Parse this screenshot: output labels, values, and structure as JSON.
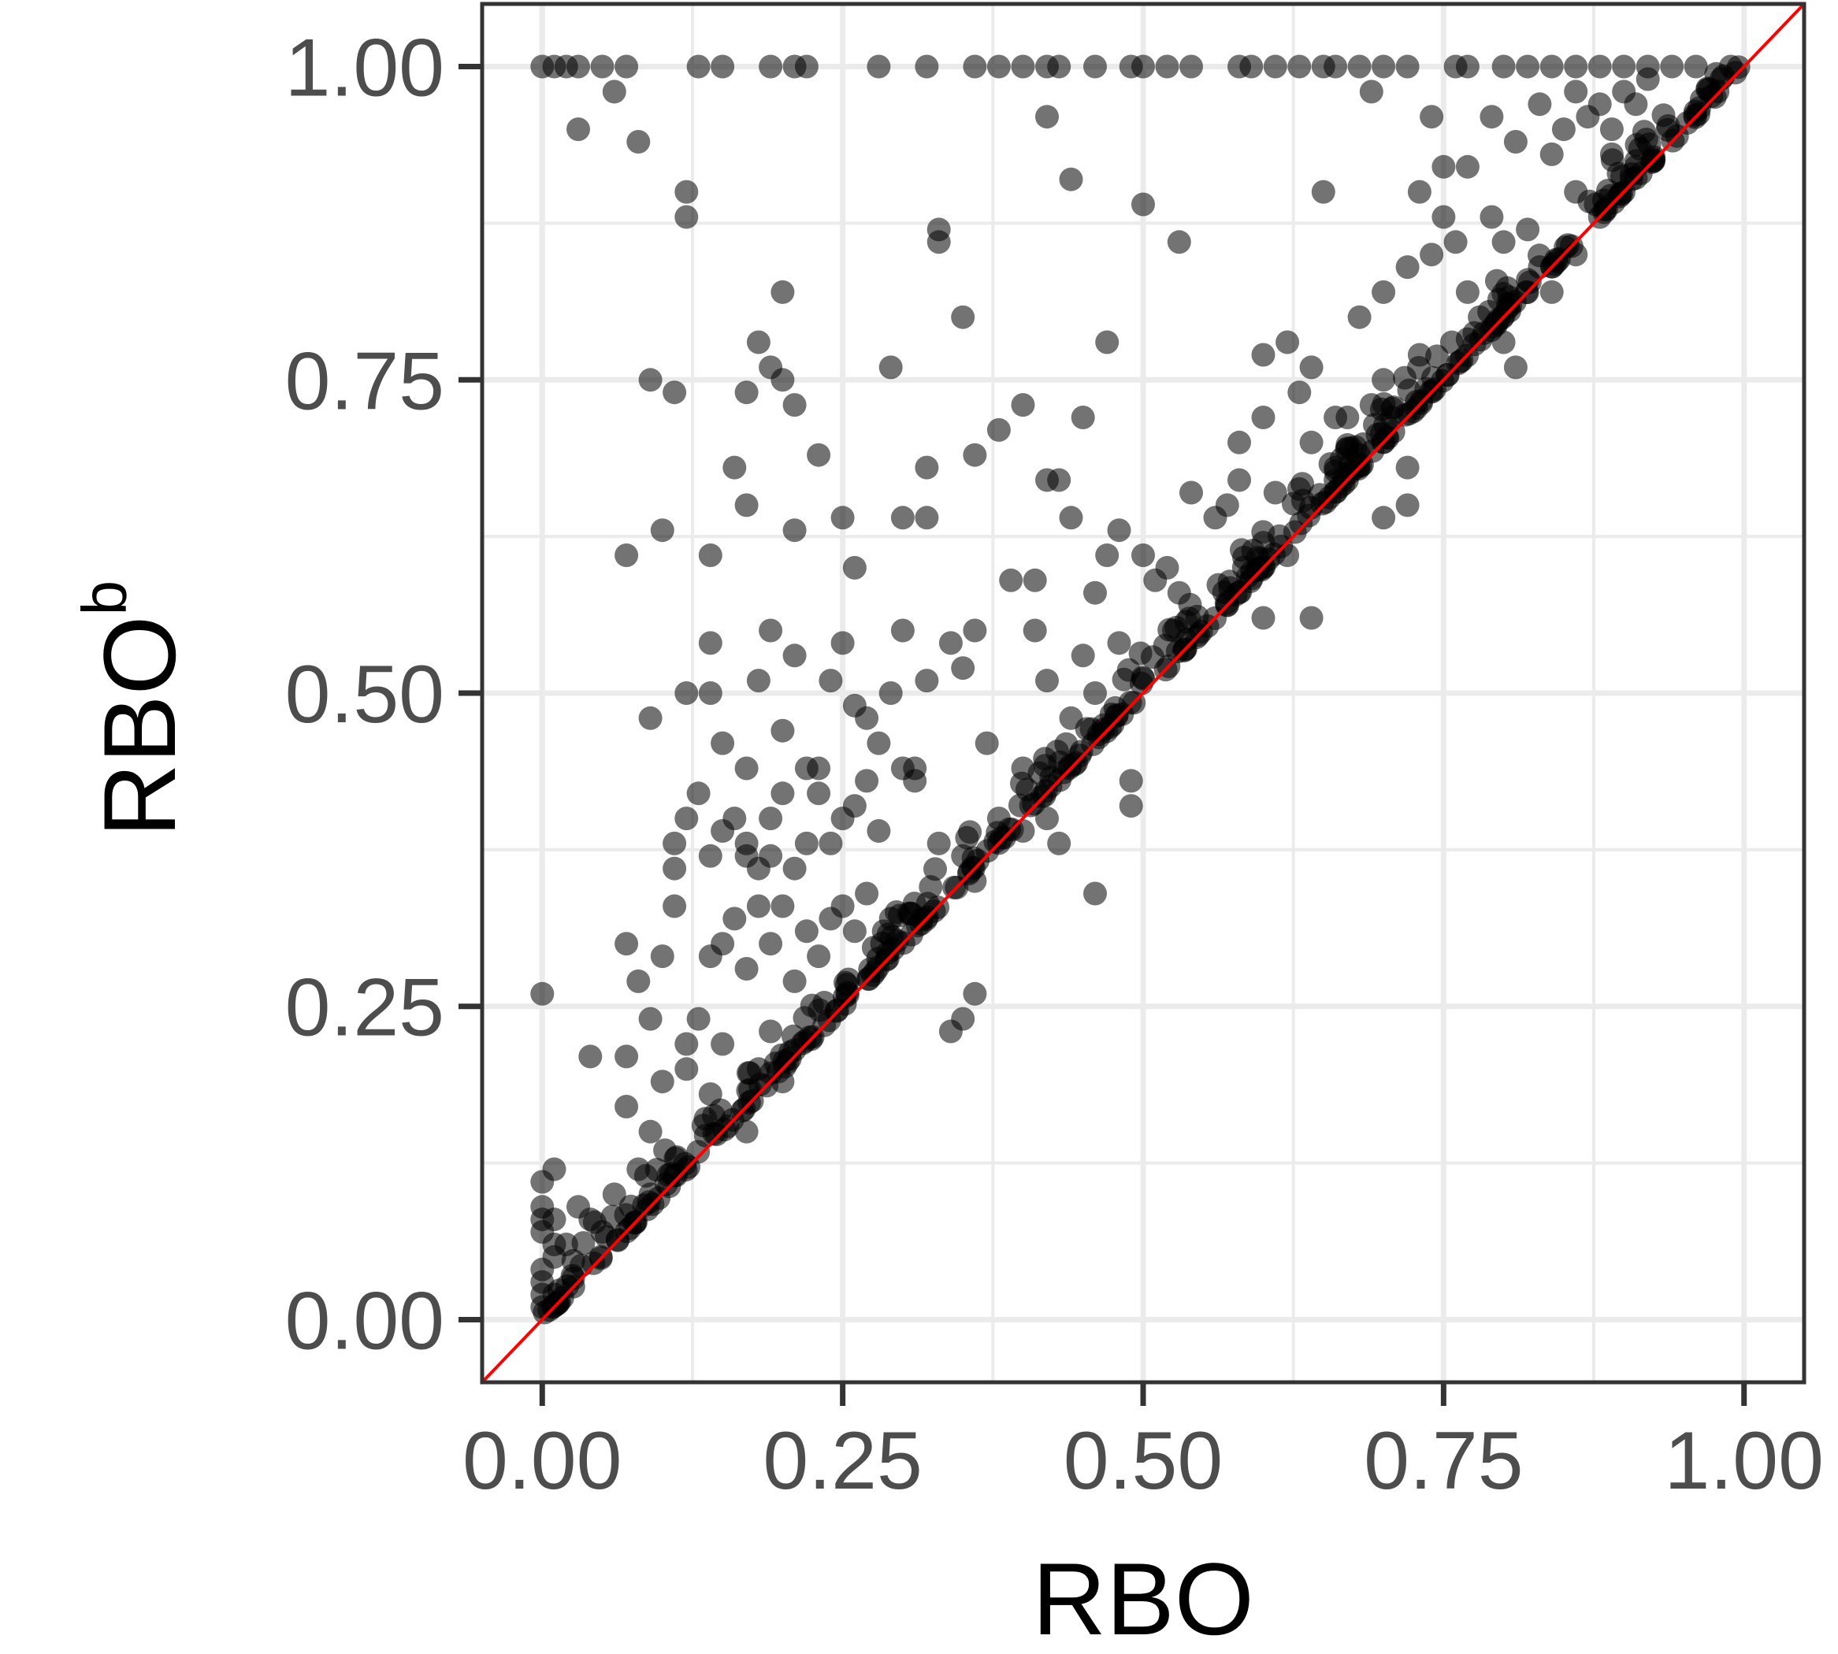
{
  "chart_data": {
    "type": "scatter",
    "title": "",
    "xlabel": "RBO",
    "ylabel": {
      "base": "RBO",
      "superscript": "b"
    },
    "xlim": [
      -0.05,
      1.05
    ],
    "ylim": [
      -0.05,
      1.05
    ],
    "x_ticks": [
      0.0,
      0.25,
      0.5,
      0.75,
      1.0
    ],
    "y_ticks": [
      0.0,
      0.25,
      0.5,
      0.75,
      1.0
    ],
    "x_tick_labels": [
      "0.00",
      "0.25",
      "0.50",
      "0.75",
      "1.00"
    ],
    "y_tick_labels": [
      "0.00",
      "0.25",
      "0.50",
      "0.75",
      "1.00"
    ],
    "grid": true,
    "legend": "none",
    "reference_line": {
      "type": "identity",
      "slope": 1,
      "intercept": 0,
      "color": "#ff0000"
    },
    "point_color": "#000000",
    "point_opacity": 0.55,
    "series": [
      {
        "points": [
          [
            0.0,
            1.0
          ],
          [
            0.01,
            1.0
          ],
          [
            0.02,
            1.0
          ],
          [
            0.03,
            1.0
          ],
          [
            0.05,
            1.0
          ],
          [
            0.07,
            1.0
          ],
          [
            0.13,
            1.0
          ],
          [
            0.15,
            1.0
          ],
          [
            0.19,
            1.0
          ],
          [
            0.21,
            1.0
          ],
          [
            0.22,
            1.0
          ],
          [
            0.28,
            1.0
          ],
          [
            0.32,
            1.0
          ],
          [
            0.36,
            1.0
          ],
          [
            0.38,
            1.0
          ],
          [
            0.4,
            1.0
          ],
          [
            0.42,
            1.0
          ],
          [
            0.43,
            1.0
          ],
          [
            0.46,
            1.0
          ],
          [
            0.49,
            1.0
          ],
          [
            0.5,
            1.0
          ],
          [
            0.52,
            1.0
          ],
          [
            0.54,
            1.0
          ],
          [
            0.58,
            1.0
          ],
          [
            0.59,
            1.0
          ],
          [
            0.61,
            1.0
          ],
          [
            0.63,
            1.0
          ],
          [
            0.65,
            1.0
          ],
          [
            0.66,
            1.0
          ],
          [
            0.68,
            1.0
          ],
          [
            0.7,
            1.0
          ],
          [
            0.72,
            1.0
          ],
          [
            0.76,
            1.0
          ],
          [
            0.77,
            1.0
          ],
          [
            0.8,
            1.0
          ],
          [
            0.82,
            1.0
          ],
          [
            0.84,
            1.0
          ],
          [
            0.86,
            1.0
          ],
          [
            0.88,
            1.0
          ],
          [
            0.9,
            1.0
          ],
          [
            0.92,
            1.0
          ],
          [
            0.94,
            1.0
          ],
          [
            0.96,
            1.0
          ],
          [
            0.03,
            0.95
          ],
          [
            0.06,
            0.98
          ],
          [
            0.08,
            0.94
          ],
          [
            0.12,
            0.9
          ],
          [
            0.12,
            0.88
          ],
          [
            0.33,
            0.87
          ],
          [
            0.33,
            0.86
          ],
          [
            0.42,
            0.96
          ],
          [
            0.44,
            0.91
          ],
          [
            0.5,
            0.89
          ],
          [
            0.53,
            0.86
          ],
          [
            0.65,
            0.9
          ],
          [
            0.69,
            0.98
          ],
          [
            0.74,
            0.96
          ],
          [
            0.75,
            0.92
          ],
          [
            0.73,
            0.9
          ],
          [
            0.77,
            0.92
          ],
          [
            0.79,
            0.96
          ],
          [
            0.81,
            0.94
          ],
          [
            0.83,
            0.97
          ],
          [
            0.84,
            0.93
          ],
          [
            0.85,
            0.95
          ],
          [
            0.86,
            0.98
          ],
          [
            0.87,
            0.96
          ],
          [
            0.88,
            0.97
          ],
          [
            0.89,
            0.95
          ],
          [
            0.9,
            0.98
          ],
          [
            0.91,
            0.97
          ],
          [
            0.92,
            0.99
          ],
          [
            0.2,
            0.82
          ],
          [
            0.18,
            0.78
          ],
          [
            0.19,
            0.76
          ],
          [
            0.17,
            0.74
          ],
          [
            0.2,
            0.75
          ],
          [
            0.21,
            0.73
          ],
          [
            0.09,
            0.75
          ],
          [
            0.11,
            0.74
          ],
          [
            0.29,
            0.76
          ],
          [
            0.35,
            0.8
          ],
          [
            0.4,
            0.73
          ],
          [
            0.47,
            0.78
          ],
          [
            0.6,
            0.77
          ],
          [
            0.62,
            0.78
          ],
          [
            0.63,
            0.74
          ],
          [
            0.6,
            0.72
          ],
          [
            0.64,
            0.76
          ],
          [
            0.68,
            0.8
          ],
          [
            0.7,
            0.82
          ],
          [
            0.72,
            0.84
          ],
          [
            0.74,
            0.85
          ],
          [
            0.75,
            0.88
          ],
          [
            0.76,
            0.86
          ],
          [
            0.79,
            0.88
          ],
          [
            0.8,
            0.86
          ],
          [
            0.07,
            0.61
          ],
          [
            0.1,
            0.63
          ],
          [
            0.14,
            0.61
          ],
          [
            0.16,
            0.68
          ],
          [
            0.17,
            0.65
          ],
          [
            0.23,
            0.69
          ],
          [
            0.21,
            0.63
          ],
          [
            0.25,
            0.64
          ],
          [
            0.26,
            0.6
          ],
          [
            0.32,
            0.68
          ],
          [
            0.32,
            0.64
          ],
          [
            0.3,
            0.64
          ],
          [
            0.36,
            0.69
          ],
          [
            0.38,
            0.71
          ],
          [
            0.42,
            0.67
          ],
          [
            0.43,
            0.67
          ],
          [
            0.44,
            0.64
          ],
          [
            0.48,
            0.63
          ],
          [
            0.54,
            0.66
          ],
          [
            0.57,
            0.65
          ],
          [
            0.58,
            0.67
          ],
          [
            0.6,
            0.62
          ],
          [
            0.61,
            0.66
          ],
          [
            0.62,
            0.61
          ],
          [
            0.64,
            0.7
          ],
          [
            0.66,
            0.68
          ],
          [
            0.67,
            0.72
          ],
          [
            0.7,
            0.64
          ],
          [
            0.72,
            0.68
          ],
          [
            0.72,
            0.65
          ],
          [
            0.09,
            0.48
          ],
          [
            0.12,
            0.5
          ],
          [
            0.14,
            0.5
          ],
          [
            0.14,
            0.54
          ],
          [
            0.15,
            0.46
          ],
          [
            0.17,
            0.44
          ],
          [
            0.18,
            0.51
          ],
          [
            0.19,
            0.55
          ],
          [
            0.2,
            0.47
          ],
          [
            0.21,
            0.53
          ],
          [
            0.22,
            0.44
          ],
          [
            0.23,
            0.44
          ],
          [
            0.24,
            0.51
          ],
          [
            0.25,
            0.54
          ],
          [
            0.26,
            0.49
          ],
          [
            0.27,
            0.48
          ],
          [
            0.28,
            0.46
          ],
          [
            0.29,
            0.5
          ],
          [
            0.3,
            0.55
          ],
          [
            0.31,
            0.44
          ],
          [
            0.32,
            0.51
          ],
          [
            0.34,
            0.54
          ],
          [
            0.35,
            0.52
          ],
          [
            0.36,
            0.55
          ],
          [
            0.37,
            0.46
          ],
          [
            0.39,
            0.59
          ],
          [
            0.41,
            0.59
          ],
          [
            0.41,
            0.55
          ],
          [
            0.46,
            0.58
          ],
          [
            0.47,
            0.61
          ],
          [
            0.5,
            0.61
          ],
          [
            0.52,
            0.6
          ],
          [
            0.48,
            0.54
          ],
          [
            0.42,
            0.51
          ],
          [
            0.45,
            0.53
          ],
          [
            0.11,
            0.38
          ],
          [
            0.11,
            0.36
          ],
          [
            0.12,
            0.4
          ],
          [
            0.13,
            0.42
          ],
          [
            0.14,
            0.37
          ],
          [
            0.15,
            0.39
          ],
          [
            0.16,
            0.4
          ],
          [
            0.17,
            0.37
          ],
          [
            0.17,
            0.38
          ],
          [
            0.18,
            0.36
          ],
          [
            0.19,
            0.37
          ],
          [
            0.19,
            0.4
          ],
          [
            0.2,
            0.42
          ],
          [
            0.21,
            0.36
          ],
          [
            0.22,
            0.38
          ],
          [
            0.23,
            0.42
          ],
          [
            0.24,
            0.38
          ],
          [
            0.25,
            0.4
          ],
          [
            0.26,
            0.41
          ],
          [
            0.27,
            0.43
          ],
          [
            0.28,
            0.39
          ],
          [
            0.3,
            0.44
          ],
          [
            0.31,
            0.43
          ],
          [
            0.33,
            0.38
          ],
          [
            0.35,
            0.37
          ],
          [
            0.36,
            0.35
          ],
          [
            0.38,
            0.4
          ],
          [
            0.4,
            0.39
          ],
          [
            0.07,
            0.3
          ],
          [
            0.08,
            0.27
          ],
          [
            0.09,
            0.24
          ],
          [
            0.1,
            0.29
          ],
          [
            0.11,
            0.33
          ],
          [
            0.12,
            0.22
          ],
          [
            0.13,
            0.24
          ],
          [
            0.14,
            0.29
          ],
          [
            0.15,
            0.3
          ],
          [
            0.16,
            0.32
          ],
          [
            0.17,
            0.28
          ],
          [
            0.18,
            0.33
          ],
          [
            0.19,
            0.3
          ],
          [
            0.2,
            0.33
          ],
          [
            0.21,
            0.27
          ],
          [
            0.22,
            0.31
          ],
          [
            0.23,
            0.29
          ],
          [
            0.24,
            0.32
          ],
          [
            0.25,
            0.33
          ],
          [
            0.26,
            0.31
          ],
          [
            0.27,
            0.34
          ],
          [
            0.29,
            0.32
          ],
          [
            0.34,
            0.23
          ],
          [
            0.35,
            0.24
          ],
          [
            0.36,
            0.26
          ],
          [
            0.46,
            0.34
          ],
          [
            0.0,
            0.26
          ],
          [
            0.04,
            0.21
          ],
          [
            0.07,
            0.17
          ],
          [
            0.07,
            0.21
          ],
          [
            0.09,
            0.15
          ],
          [
            0.1,
            0.19
          ],
          [
            0.12,
            0.2
          ],
          [
            0.14,
            0.18
          ],
          [
            0.15,
            0.22
          ],
          [
            0.17,
            0.15
          ],
          [
            0.18,
            0.2
          ],
          [
            0.19,
            0.23
          ],
          [
            0.2,
            0.19
          ],
          [
            0.0,
            0.09
          ],
          [
            0.0,
            0.11
          ],
          [
            0.01,
            0.12
          ],
          [
            0.0,
            0.08
          ],
          [
            0.0,
            0.07
          ],
          [
            0.01,
            0.06
          ],
          [
            0.01,
            0.05
          ],
          [
            0.0,
            0.04
          ],
          [
            0.0,
            0.03
          ],
          [
            0.01,
            0.02
          ],
          [
            0.0,
            0.02
          ],
          [
            0.0,
            0.01
          ],
          [
            0.01,
            0.08
          ],
          [
            0.02,
            0.06
          ],
          [
            0.03,
            0.09
          ],
          [
            0.04,
            0.08
          ],
          [
            0.05,
            0.07
          ],
          [
            0.06,
            0.1
          ],
          [
            0.08,
            0.12
          ],
          [
            0.09,
            0.1
          ],
          [
            0.45,
            0.72
          ],
          [
            0.58,
            0.7
          ],
          [
            0.51,
            0.59
          ],
          [
            0.56,
            0.64
          ],
          [
            0.53,
            0.58
          ],
          [
            0.66,
            0.72
          ],
          [
            0.7,
            0.75
          ],
          [
            0.77,
            0.82
          ],
          [
            0.82,
            0.87
          ],
          [
            0.86,
            0.9
          ],
          [
            0.89,
            0.93
          ],
          [
            0.44,
            0.48
          ],
          [
            0.46,
            0.5
          ],
          [
            0.4,
            0.44
          ],
          [
            0.6,
            0.56
          ],
          [
            0.64,
            0.56
          ],
          [
            0.49,
            0.43
          ],
          [
            0.49,
            0.41
          ],
          [
            0.43,
            0.38
          ],
          [
            0.42,
            0.4
          ],
          [
            0.66,
            0.67
          ],
          [
            0.69,
            0.73
          ],
          [
            0.73,
            0.77
          ],
          [
            0.78,
            0.8
          ],
          [
            0.83,
            0.84
          ],
          [
            0.86,
            0.85
          ],
          [
            0.84,
            0.82
          ],
          [
            0.81,
            0.76
          ],
          [
            0.8,
            0.78
          ],
          [
            0.88,
            0.88
          ],
          [
            0.91,
            0.92
          ]
        ],
        "diagonal_cluster": {
          "x_from": 0.0,
          "x_to": 1.0,
          "relation": "y >= x, tightly clustered just above y = x"
        }
      }
    ]
  }
}
